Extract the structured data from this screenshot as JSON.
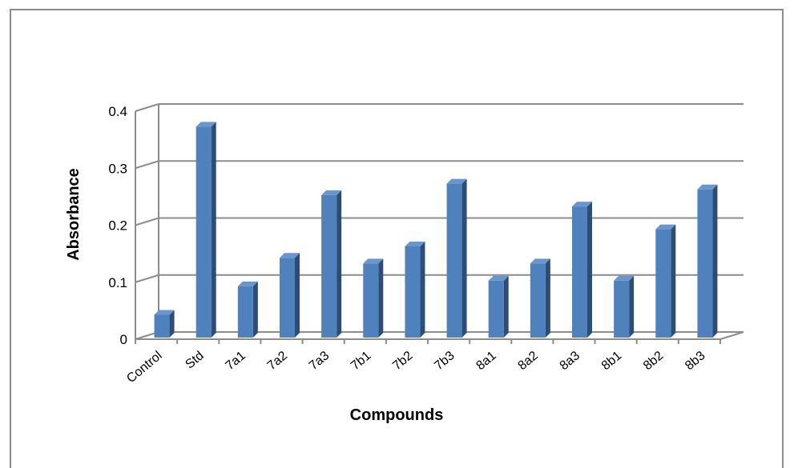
{
  "chart_data": {
    "type": "bar",
    "style": "3d-column",
    "title": "",
    "xlabel": "Compounds",
    "ylabel": "Absorbance",
    "categories": [
      "Control",
      "Std",
      "7a1",
      "7a2",
      "7a3",
      "7b1",
      "7b2",
      "7b3",
      "8a1",
      "8a2",
      "8a3",
      "8b1",
      "8b2",
      "8b3"
    ],
    "values": [
      0.04,
      0.37,
      0.09,
      0.14,
      0.25,
      0.13,
      0.16,
      0.27,
      0.1,
      0.13,
      0.23,
      0.1,
      0.19,
      0.26
    ],
    "ylim": [
      0,
      0.4
    ],
    "yticks": [
      "0",
      "0.1",
      "0.2",
      "0.3",
      "0.4"
    ],
    "grid": true,
    "legend": "none",
    "colors": {
      "bar_front": "#4f81bd",
      "bar_side": "#2c4d75",
      "bar_top": "#6a96cc",
      "grid": "#8c8c8c"
    }
  }
}
